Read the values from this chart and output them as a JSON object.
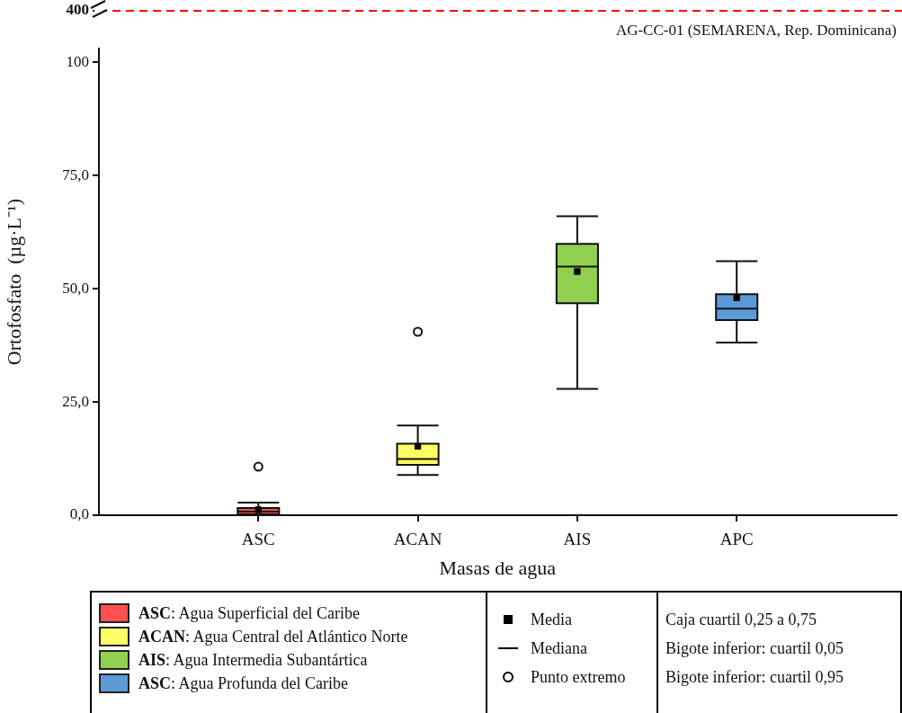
{
  "chart_data": [
    {
      "type": "other",
      "ref_lines": [
        {
          "axis": "y",
          "label": "400",
          "color": "#ff0000",
          "line_style": "dashed"
        }
      ],
      "annotations": [
        "AG-CC-01 (SEMARENA, Rep. Dominicana)"
      ]
    },
    {
      "type": "box",
      "xlabel": "Masas de agua",
      "ylabel": "Ortofosfato  (µg·L⁻¹)",
      "categories": [
        "ASC",
        "ACAN",
        "AIS",
        "APC"
      ],
      "colors": [
        "#ff5050",
        "#ffff66",
        "#92d050",
        "#5b9bd5"
      ],
      "boxes": [
        {
          "low": 0,
          "q1": 0.2,
          "median": 0.8,
          "q3": 1.6,
          "high": 2.8,
          "mean": 1.2,
          "outliers": [
            10.7
          ]
        },
        {
          "low": 8.9,
          "q1": 11.1,
          "median": 12.4,
          "q3": 15.8,
          "high": 19.8,
          "mean": 15.2,
          "outliers": [
            40.5
          ]
        },
        {
          "low": 27.9,
          "q1": 46.8,
          "median": 54.9,
          "q3": 59.9,
          "high": 66.0,
          "mean": 53.8
        },
        {
          "low": 38.1,
          "q1": 43.1,
          "median": 45.6,
          "q3": 48.8,
          "high": 56.1,
          "mean": 48.0
        }
      ],
      "ylim": [
        0,
        103
      ],
      "yticks": [
        {
          "value": 0,
          "label": "0,0"
        },
        {
          "value": 25,
          "label": "25,0"
        },
        {
          "value": 50,
          "label": "50,0"
        },
        {
          "value": 75,
          "label": "75,0"
        },
        100
      ],
      "annotations": [
        "ASC: Agua Superficial del Caribe",
        "ACAN: Agua Central del Atlántico Norte",
        "AIS: Agua Intermedia Subantártica",
        "ASC: Agua Profunda del Caribe",
        "Media",
        "Mediana",
        "Punto extremo",
        "Caja cuartil 0,25 a 0,75",
        "Bigote inferior: cuartil 0,05",
        "Bigote inferior: cuartil 0,95"
      ]
    }
  ]
}
